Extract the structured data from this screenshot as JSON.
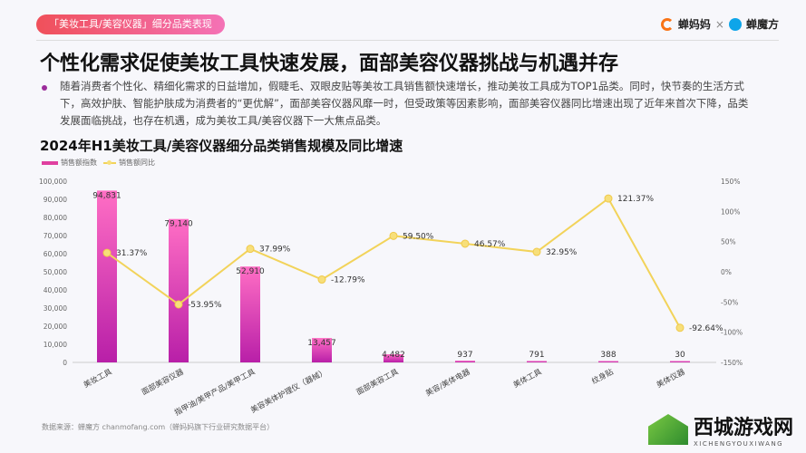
{
  "header": {
    "tag": "「美妆工具/美容仪器」细分品类表现",
    "brand1": "蝉妈妈",
    "sep": "×",
    "brand2": "蝉魔方"
  },
  "title": "个性化需求促使美妆工具快速发展，面部美容仪器挑战与机遇并存",
  "paragraph": "随着消费者个性化、精细化需求的日益增加，假睫毛、双眼皮贴等美妆工具销售额快速增长，推动美妆工具成为TOP1品类。同时，快节奏的生活方式下，高效护肤、智能护肤成为消费者的“更优解”，面部美容仪器风靡一时，但受政策等因素影响，面部美容仪器同比增速出现了近年来首次下降，品类发展面临挑战，也存在机遇，成为美妆工具/美容仪器下一大焦点品类。",
  "source": "数据来源：蝉魔方 chanmofang.com（蝉妈妈旗下行业研究数据平台）",
  "watermark_logo": {
    "cn": "西城游戏网",
    "en": "XICHENGYOUXIWANG"
  },
  "chart_data": {
    "type": "bar+line",
    "title": "2024年H1美妆工具/美容仪器细分品类销售规模及同比增速",
    "categories": [
      "美妆工具",
      "面部美容仪器",
      "指甲油/美甲产品/美甲工具",
      "美容美体护理仪（器械）",
      "面部美容工具",
      "美容/美体电器",
      "美体工具",
      "纹身贴",
      "美体仪器"
    ],
    "series": [
      {
        "name": "销售额指数",
        "type": "bar",
        "axis": "left",
        "color": "#e040a0",
        "values": [
          94831,
          79140,
          52910,
          13457,
          4482,
          937,
          791,
          388,
          30
        ],
        "labels": [
          "94,831",
          "79,140",
          "52,910",
          "13,457",
          "4,482",
          "937",
          "791",
          "388",
          "30"
        ]
      },
      {
        "name": "销售额同比",
        "type": "line",
        "axis": "right",
        "color": "#f2d35a",
        "values": [
          31.37,
          -53.95,
          37.99,
          -12.79,
          59.5,
          46.57,
          32.95,
          121.37,
          -92.64
        ],
        "labels": [
          "31.37%",
          "-53.95%",
          "37.99%",
          "-12.79%",
          "59.50%",
          "46.57%",
          "32.95%",
          "121.37%",
          "-92.64%"
        ]
      }
    ],
    "left_axis": {
      "range": [
        0,
        100000
      ],
      "ticks": [
        "0",
        "10,000",
        "20,000",
        "30,000",
        "40,000",
        "50,000",
        "60,000",
        "70,000",
        "80,000",
        "90,000",
        "100,000"
      ]
    },
    "right_axis": {
      "range": [
        -150,
        150
      ],
      "ticks": [
        "-150%",
        "-100%",
        "-50%",
        "0%",
        "50%",
        "100%",
        "150%"
      ]
    },
    "legend": "top-left",
    "grid": false
  }
}
